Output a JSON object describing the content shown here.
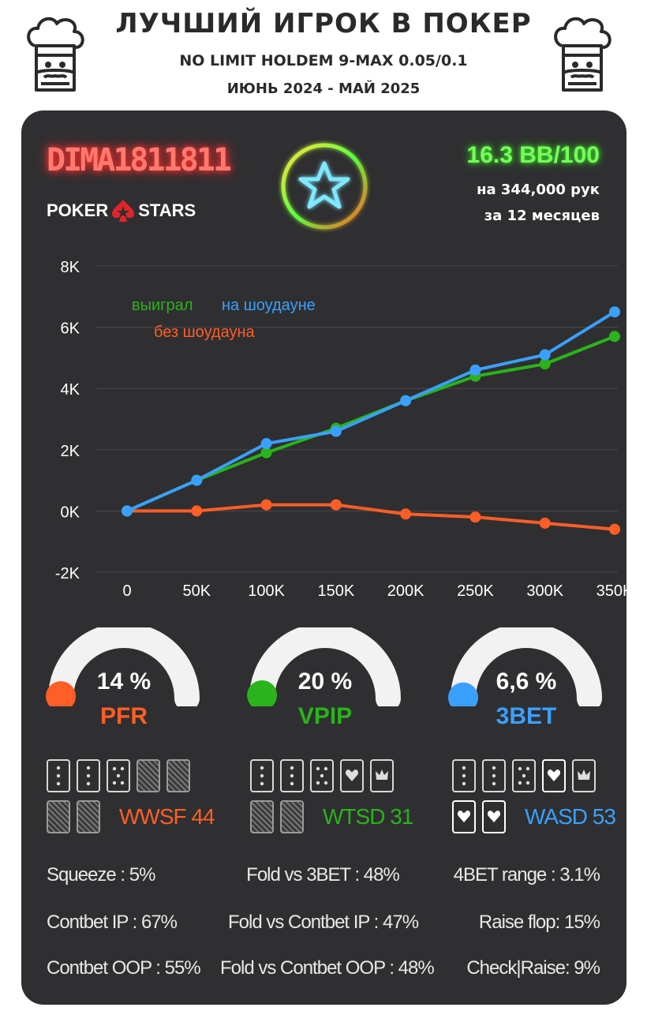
{
  "header": {
    "title": "ЛУЧШИЙ ИГРОК В ПОКЕР",
    "subtitle": "NO LIMIT HOLDEM 9-MAX 0.05/0.1",
    "period": "ИЮНЬ 2024 - МАЙ 2025"
  },
  "player": {
    "name": "DIMA1811811",
    "room": "POKER STARS",
    "room_part1": "POKER",
    "room_part2": "STARS",
    "winrate": "16.3 BB/100",
    "hands": "на 344,000 рук",
    "months": "за  12 месяцев"
  },
  "colors": {
    "orange": "#ff5e26",
    "green": "#2ab31a",
    "blue": "#3aa0ff",
    "panel": "#2f2f31"
  },
  "chart_data": {
    "type": "line",
    "x": [
      0,
      50000,
      100000,
      150000,
      200000,
      250000,
      300000,
      350000
    ],
    "xticks": [
      "0",
      "50K",
      "100K",
      "150K",
      "200K",
      "250K",
      "300K",
      "350K"
    ],
    "yticks": [
      "8K",
      "6K",
      "4K",
      "2K",
      "0K",
      "-2K"
    ],
    "ylim": [
      -2000,
      8000
    ],
    "xlim": [
      0,
      350000
    ],
    "grid": true,
    "series": [
      {
        "name": "выиграл",
        "color": "#2ab31a",
        "values": [
          0,
          1000,
          1900,
          2700,
          3600,
          4400,
          4800,
          5700
        ]
      },
      {
        "name": "на шоудауне",
        "color": "#3aa0ff",
        "values": [
          0,
          1000,
          2200,
          2600,
          3600,
          4600,
          5100,
          6500
        ]
      },
      {
        "name": "без шоудауна",
        "color": "#ff5e26",
        "values": [
          0,
          0,
          200,
          200,
          -100,
          -200,
          -400,
          -600
        ]
      }
    ]
  },
  "gauges": [
    {
      "value": "14 %",
      "label": "PFR",
      "fraction": 0.14,
      "color": "#ff5e26"
    },
    {
      "value": "20 %",
      "label": "VPIP",
      "fraction": 0.2,
      "color": "#2ab31a"
    },
    {
      "value": "6,6 %",
      "label": "3BET",
      "fraction": 0.066,
      "color": "#3aa0ff"
    }
  ],
  "card_stats": [
    {
      "label": "WWSF 44",
      "color": "#ff5e26"
    },
    {
      "label": "WTSD 31",
      "color": "#2ab31a"
    },
    {
      "label": "WASD 53",
      "color": "#3aa0ff"
    }
  ],
  "stats": {
    "squeeze": "Squeeze : 5%",
    "cbet_ip": "Contbet IP : 67%",
    "cbet_oop": "Contbet OOP : 55%",
    "fold_3bet": "Fold vs 3BET : 48%",
    "fold_cbet_ip": "Fold vs Contbet IP : 47%",
    "fold_cbet_oop": "Fold vs Contbet OOP : 48%",
    "fourbet": "4BET range : 3.1%",
    "raise_flop": "Raise flop: 15%",
    "check_raise": "Check|Raise: 9%"
  }
}
